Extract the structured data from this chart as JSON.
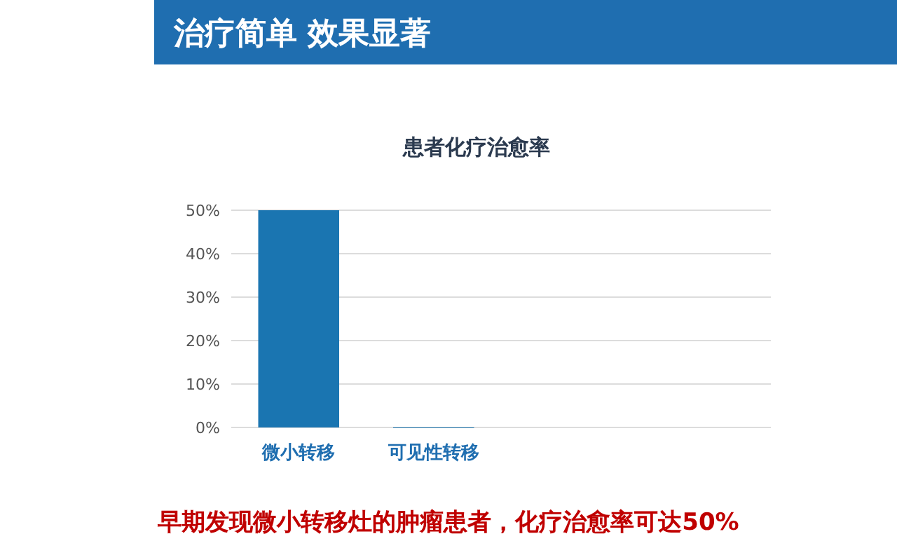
{
  "chart_data": {
    "type": "bar",
    "title": "患者化疗治愈率",
    "categories": [
      "微小转移",
      "可见性转移"
    ],
    "values": [
      50,
      0
    ],
    "color": "#1a75b1",
    "ylim": [
      0,
      50
    ],
    "yticks": [
      {
        "value": 0,
        "label": "0%"
      },
      {
        "value": 10,
        "label": "10%"
      },
      {
        "value": 20,
        "label": "20%"
      },
      {
        "value": 30,
        "label": "30%"
      },
      {
        "value": 40,
        "label": "40%"
      },
      {
        "value": 50,
        "label": "50%"
      }
    ],
    "grid": "y",
    "annotations": [
      "治疗简单 效果显著",
      "早期发现微小转移灶的肿瘤患者，化疗治愈率可达50%"
    ]
  }
}
